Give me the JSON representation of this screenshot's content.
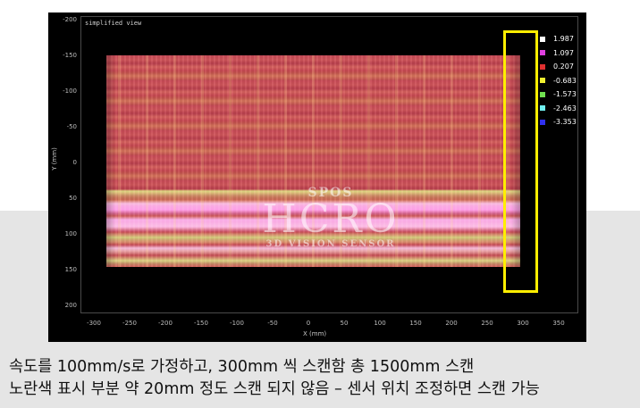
{
  "plot": {
    "title": "simplified view",
    "x_label": "X (mm)",
    "y_label": "Y (mm)",
    "x_ticks": [
      "-300",
      "-250",
      "-200",
      "-150",
      "-100",
      "-50",
      "0",
      "50",
      "100",
      "150",
      "200",
      "250",
      "300",
      "350"
    ],
    "y_ticks": [
      "-200",
      "-150",
      "-100",
      "-50",
      "0",
      "50",
      "100",
      "150",
      "200"
    ]
  },
  "legend": [
    {
      "value": "1.987",
      "color": "#ffffff"
    },
    {
      "value": "1.097",
      "color": "#e040e0"
    },
    {
      "value": "0.207",
      "color": "#e03030"
    },
    {
      "value": "-0.683",
      "color": "#f0f030"
    },
    {
      "value": "-1.573",
      "color": "#70e050"
    },
    {
      "value": "-2.463",
      "color": "#70f0f0"
    },
    {
      "value": "-3.353",
      "color": "#3030f0"
    }
  ],
  "watermark": {
    "top": "SPOS",
    "middle": "HCRO",
    "bottom": "3D VISION SENSOR"
  },
  "caption": {
    "line1": "속도를 100mm/s로 가정하고, 300mm 씩 스캔함 총 1500mm 스캔",
    "line2": "노란색 표시 부분 약 20mm 정도 스캔 되지 않음 – 센서 위치 조정하면 스캔 가능"
  }
}
